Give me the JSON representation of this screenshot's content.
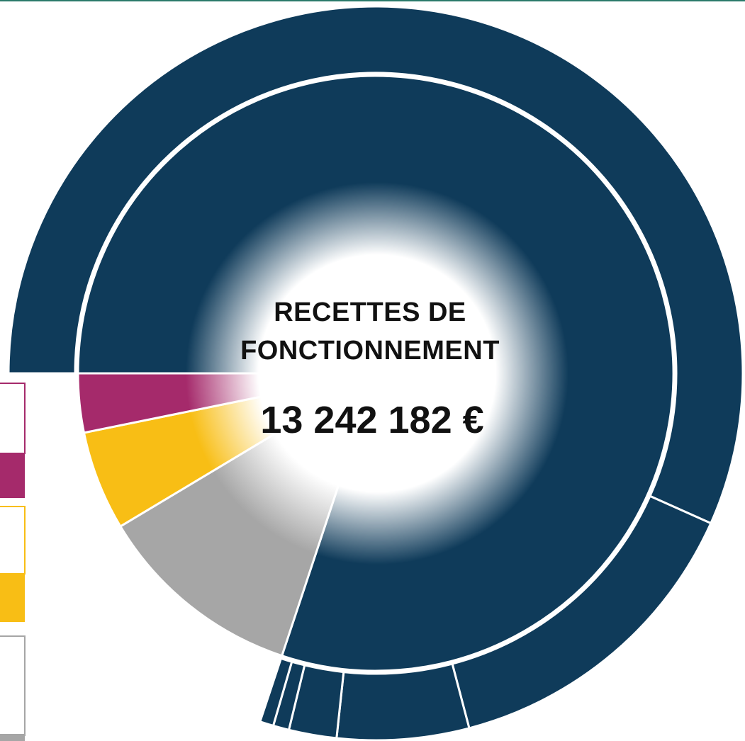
{
  "chart_data": {
    "type": "sunburst",
    "title": "RECETTES DE FONCTIONNEMENT",
    "total": "13 242 182 €",
    "inner": {
      "values": [
        80.1,
        11.3,
        5.4,
        3.2
      ],
      "colors": [
        "#0f3b5a",
        "#a6a6a6",
        "#f8be15",
        "#a52a6b"
      ]
    },
    "outer": {
      "values": [
        56.7,
        14.2,
        5.8,
        2.1,
        0.7,
        0.6
      ],
      "color": "#0f3b5a"
    }
  }
}
